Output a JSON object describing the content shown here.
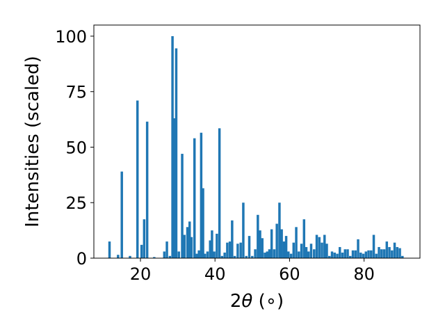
{
  "chart_data": {
    "type": "bar",
    "title": "",
    "xlabel_prefix": "2",
    "xlabel_theta": "θ",
    "xlabel_suffix": " (∘)",
    "ylabel": "Intensities (scaled)",
    "xlim": [
      7.5,
      95
    ],
    "ylim": [
      0,
      105
    ],
    "xticks": [
      20,
      40,
      60,
      80
    ],
    "yticks": [
      0,
      25,
      50,
      75,
      100
    ],
    "grid": false,
    "bar_color": "#1f77b4",
    "bar_width": 0.65,
    "x": [
      11.7,
      14.0,
      15.0,
      17.2,
      19.2,
      20.3,
      21.0,
      21.8,
      23.7,
      26.4,
      27.1,
      27.9,
      28.6,
      29.1,
      29.6,
      30.3,
      31.2,
      31.8,
      32.6,
      33.2,
      33.7,
      34.5,
      35.1,
      35.7,
      36.3,
      36.8,
      37.3,
      38.0,
      38.7,
      39.2,
      39.8,
      40.5,
      41.2,
      41.9,
      42.6,
      43.3,
      44.0,
      44.6,
      45.3,
      46.1,
      46.9,
      47.6,
      48.4,
      49.2,
      50.0,
      50.8,
      51.5,
      52.1,
      52.7,
      53.4,
      54.0,
      54.6,
      55.2,
      55.9,
      56.6,
      57.3,
      57.9,
      58.5,
      59.1,
      59.7,
      60.4,
      61.1,
      61.8,
      62.5,
      63.2,
      63.9,
      64.5,
      65.1,
      65.8,
      66.6,
      67.3,
      68.0,
      68.7,
      69.4,
      70.0,
      70.7,
      71.4,
      72.1,
      72.8,
      73.5,
      74.2,
      74.9,
      75.6,
      76.3,
      77.0,
      77.7,
      78.4,
      79.1,
      79.8,
      80.5,
      81.2,
      81.9,
      82.6,
      83.3,
      84.0,
      84.7,
      85.4,
      86.1,
      86.8,
      87.5,
      88.2,
      88.9,
      89.6,
      90.3
    ],
    "values": [
      7.5,
      1.5,
      39,
      1.0,
      71,
      6,
      17.5,
      61.5,
      0.5,
      3,
      7.5,
      1,
      100,
      63,
      94.5,
      3,
      47,
      10.5,
      14,
      16.5,
      9.5,
      54,
      2,
      3.5,
      56.5,
      31.5,
      2,
      3,
      8,
      12.5,
      3,
      11,
      58.5,
      1,
      2.5,
      7,
      7.5,
      17,
      1,
      6.5,
      7,
      25,
      1,
      10,
      1,
      4,
      19.5,
      12.5,
      9,
      2.5,
      3,
      4,
      13,
      4,
      15.5,
      25,
      13,
      7.5,
      10,
      3,
      2,
      7,
      14,
      3,
      6.5,
      17.5,
      5,
      3,
      6.5,
      4,
      10.5,
      9.5,
      7,
      10.5,
      6.5,
      1,
      3,
      2.5,
      2,
      5,
      2.5,
      4,
      4,
      1,
      3.5,
      3.5,
      8.5,
      2.5,
      2,
      3,
      3.5,
      3.5,
      10.5,
      2,
      5,
      4,
      4,
      7.5,
      5,
      3.5,
      7,
      5,
      4.5,
      1
    ]
  }
}
